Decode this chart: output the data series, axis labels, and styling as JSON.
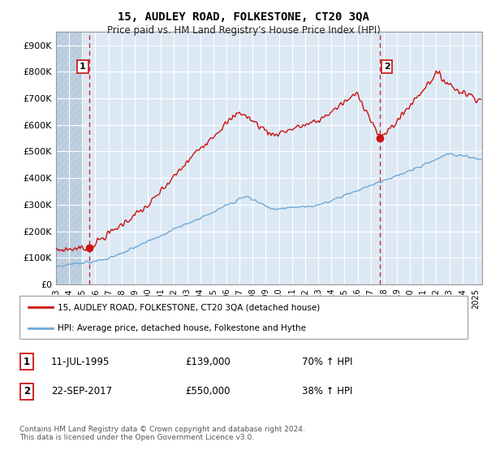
{
  "title": "15, AUDLEY ROAD, FOLKESTONE, CT20 3QA",
  "subtitle": "Price paid vs. HM Land Registry's House Price Index (HPI)",
  "ylabel_ticks": [
    "£0",
    "£100K",
    "£200K",
    "£300K",
    "£400K",
    "£500K",
    "£600K",
    "£700K",
    "£800K",
    "£900K"
  ],
  "ytick_values": [
    0,
    100000,
    200000,
    300000,
    400000,
    500000,
    600000,
    700000,
    800000,
    900000
  ],
  "ylim": [
    0,
    950000
  ],
  "xlim_start": 1993.0,
  "xlim_end": 2025.5,
  "hpi_color": "#6fa8d6",
  "price_color": "#cc1111",
  "vline_color": "#cc1111",
  "purchase1_x": 1995.54,
  "purchase1_y": 139000,
  "purchase2_x": 2017.73,
  "purchase2_y": 550000,
  "legend_price_label": "15, AUDLEY ROAD, FOLKESTONE, CT20 3QA (detached house)",
  "legend_hpi_label": "HPI: Average price, detached house, Folkestone and Hythe",
  "table_row1_num": "1",
  "table_row1_date": "11-JUL-1995",
  "table_row1_price": "£139,000",
  "table_row1_hpi": "70% ↑ HPI",
  "table_row2_num": "2",
  "table_row2_date": "22-SEP-2017",
  "table_row2_price": "£550,000",
  "table_row2_hpi": "38% ↑ HPI",
  "footnote": "Contains HM Land Registry data © Crown copyright and database right 2024.\nThis data is licensed under the Open Government Licence v3.0.",
  "bg_color": "#dce9f5",
  "plot_bg": "#dce9f5",
  "grid_color": "#ffffff",
  "hatch_color": "#c0d0e0"
}
